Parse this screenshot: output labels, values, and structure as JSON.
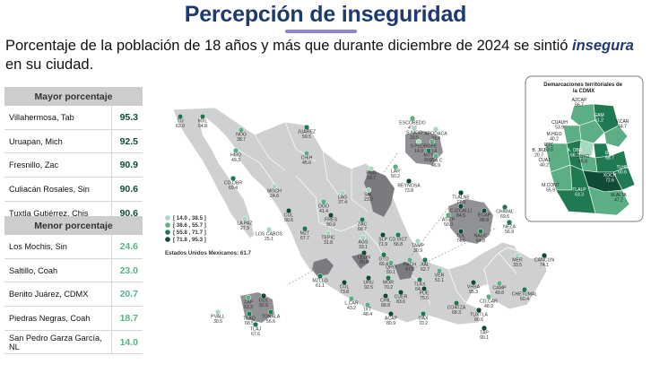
{
  "header": {
    "title": "Percepción de inseguridad",
    "subtitle_pre": "Porcentaje de la población de 18 años y más que durante diciembre de 2024 se sintió",
    "subtitle_em": "insegura",
    "subtitle_post": "en su ciudad."
  },
  "top_table": {
    "heading": "Mayor porcentaje",
    "rows": [
      {
        "city": "Villahermosa, Tab",
        "value": "95.3"
      },
      {
        "city": "Uruapan, Mich",
        "value": "92.5"
      },
      {
        "city": "Fresnillo, Zac",
        "value": "90.9"
      },
      {
        "city": "Culiacán Rosales, Sin",
        "value": "90.6"
      },
      {
        "city": "Tuxtla Gutiérrez, Chis",
        "value": "90.6"
      }
    ]
  },
  "bottom_table": {
    "heading": "Menor porcentaje",
    "rows": [
      {
        "city": "Los Mochis, Sin",
        "value": "24.6"
      },
      {
        "city": "Saltillo, Coah",
        "value": "23.0"
      },
      {
        "city": "Benito Juárez, CDMX",
        "value": "20.7"
      },
      {
        "city": "Piedras Negras, Coah",
        "value": "18.7"
      },
      {
        "city": "San Pedro Garza García, NL",
        "value": "14.0"
      }
    ]
  },
  "legend": {
    "ranges": [
      "[ 14.0 , 38.5 ]",
      "[ 38.6 , 55.7 ]",
      "[ 55.8 , 71.7 ]",
      "[ 71.8 , 95.3 ]"
    ],
    "colors": [
      "#a8d8bd",
      "#5cae84",
      "#1f7a52",
      "#0f4b35"
    ],
    "national": "Estados Unidos Mexicanos: 61.7"
  },
  "cdmx": {
    "title": "Demarcaciones territoriales de la CDMX",
    "labels": [
      {
        "name": "AZCAP",
        "value": "56.7"
      },
      {
        "name": "GAM",
        "value": "61.2"
      },
      {
        "name": "CUAUH",
        "value": "53.9"
      },
      {
        "name": "V.CAR",
        "value": "44.7"
      },
      {
        "name": "M.HGO",
        "value": "40.2"
      },
      {
        "name": "IZTC",
        "value": "63.5"
      },
      {
        "name": "B. JRZ",
        "value": "20.7"
      },
      {
        "name": "CUAJ",
        "value": "40.2"
      },
      {
        "name": "A. OBR",
        "value": "66.2"
      },
      {
        "name": "COYO",
        "value": "45.9"
      },
      {
        "name": "IZTP",
        "value": "68.7"
      },
      {
        "name": "TLHC",
        "value": "60.6"
      },
      {
        "name": "M.CONT",
        "value": "55.9"
      },
      {
        "name": "XOCH",
        "value": "72.6"
      },
      {
        "name": "TLALP",
        "value": "63.3"
      },
      {
        "name": "M.ALTA",
        "value": "47.2"
      }
    ]
  },
  "cities": [
    {
      "name": "TIJ",
      "value": "62.0",
      "level": 2
    },
    {
      "name": "MXL",
      "value": "64.8",
      "level": 2
    },
    {
      "name": "NOG",
      "value": "38.7",
      "level": 1
    },
    {
      "name": "JUÁREZ",
      "value": "59.5",
      "level": 2
    },
    {
      "name": "HMO",
      "value": "49.3",
      "level": 1
    },
    {
      "name": "CHIH",
      "value": "45.6",
      "level": 1
    },
    {
      "name": "CD.OBR",
      "value": "69.4",
      "level": 2
    },
    {
      "name": "MOCH",
      "value": "24.6",
      "level": 0
    },
    {
      "name": "LA PAZ",
      "value": "27.9",
      "level": 0
    },
    {
      "name": "LOS CABOS",
      "value": "25.1",
      "level": 0
    },
    {
      "name": "CUL",
      "value": "90.6",
      "level": 3
    },
    {
      "name": "MZT",
      "value": "67.7",
      "level": 2
    },
    {
      "name": "DGO",
      "value": "41.4",
      "level": 1
    },
    {
      "name": "LAG",
      "value": "37.4",
      "level": 0
    },
    {
      "name": "SAL",
      "value": "23.0",
      "level": 0
    },
    {
      "name": "PNG",
      "value": "18.7",
      "level": 0
    },
    {
      "name": "LAR",
      "value": "50.2",
      "level": 1
    },
    {
      "name": "ESCOBEDO",
      "value": "47.9",
      "level": 1
    },
    {
      "name": "S.NICO",
      "value": "28.5",
      "level": 0
    },
    {
      "name": "APODACA",
      "value": "33.4",
      "level": 0
    },
    {
      "name": "GPE",
      "value": "50.4",
      "level": 1
    },
    {
      "name": "S.PEDR",
      "value": "14.0",
      "level": 0
    },
    {
      "name": "MTY",
      "value": "60.2",
      "level": 2
    },
    {
      "name": "STA.C",
      "value": "46.9",
      "level": 1
    },
    {
      "name": "REYNOSA",
      "value": "73.8",
      "level": 3
    },
    {
      "name": "FRES",
      "value": "90.9",
      "level": 3
    },
    {
      "name": "ZAC",
      "value": "68.7",
      "level": 2
    },
    {
      "name": "CD.VICT",
      "value": "56.8",
      "level": 2
    },
    {
      "name": "TEPIC",
      "value": "31.8",
      "level": 0
    },
    {
      "name": "AGS",
      "value": "33.1",
      "level": 0
    },
    {
      "name": "SLP",
      "value": "71.9",
      "level": 3
    },
    {
      "name": "TAMP",
      "value": "30.9",
      "level": 0
    },
    {
      "name": "LEON",
      "value": "80.8",
      "level": 3
    },
    {
      "name": "GTO",
      "value": "66.4",
      "level": 2
    },
    {
      "name": "QRO",
      "value": "50.1",
      "level": 1
    },
    {
      "name": "PACH",
      "value": "47.5",
      "level": 1
    },
    {
      "name": "XAL",
      "value": "62.7",
      "level": 2
    },
    {
      "name": "TLAX",
      "value": "64.2",
      "level": 2
    },
    {
      "name": "VER",
      "value": "51.1",
      "level": 1
    },
    {
      "name": "MZLLO",
      "value": "61.1",
      "level": 2
    },
    {
      "name": "COL",
      "value": "73.8",
      "level": 3
    },
    {
      "name": "URU",
      "value": "92.5",
      "level": 3
    },
    {
      "name": "MOR",
      "value": "70.2",
      "level": 2
    },
    {
      "name": "CHIL",
      "value": "88.8",
      "level": 3
    },
    {
      "name": "CUER",
      "value": "83.6",
      "level": 3
    },
    {
      "name": "PUE",
      "value": "75.5",
      "level": 3
    },
    {
      "name": "VHSA",
      "value": "95.3",
      "level": 3
    },
    {
      "name": "CD.CAR",
      "value": "48.9",
      "level": 1
    },
    {
      "name": "CAMP",
      "value": "49.8",
      "level": 1
    },
    {
      "name": "MER",
      "value": "33.5",
      "level": 0
    },
    {
      "name": "CANCUN",
      "value": "74.1",
      "level": 3
    },
    {
      "name": "CHETUMAL",
      "value": "60.4",
      "level": 2
    },
    {
      "name": "L.CAR",
      "value": "43.2",
      "level": 1
    },
    {
      "name": "IXT",
      "value": "48.4",
      "level": 1
    },
    {
      "name": "ACAP",
      "value": "80.9",
      "level": 3
    },
    {
      "name": "OAX",
      "value": "70.2",
      "level": 2
    },
    {
      "name": "COATZA",
      "value": "68.3",
      "level": 2
    },
    {
      "name": "TUXTLA",
      "value": "90.6",
      "level": 3
    },
    {
      "name": "TAP",
      "value": "90.1",
      "level": 3
    },
    {
      "name": "ZAP",
      "value": "53.3",
      "level": 1
    },
    {
      "name": "GDL",
      "value": "82.9",
      "level": 3
    },
    {
      "name": "TLAQ",
      "value": "68.5",
      "level": 2
    },
    {
      "name": "TONALA",
      "value": "56.6",
      "level": 2
    },
    {
      "name": "TLAJ",
      "value": "67.6",
      "level": 2
    },
    {
      "name": "PVALL",
      "value": "30.5",
      "level": 0
    },
    {
      "name": "TLALNE",
      "value": "77.9",
      "level": 3
    },
    {
      "name": "C.IZCALLI",
      "value": "84.5",
      "level": 3
    },
    {
      "name": "ECAP",
      "value": "88.8",
      "level": 3
    },
    {
      "name": "ATIZP",
      "value": "50.0",
      "level": 1
    },
    {
      "name": "CHIMAL",
      "value": "69.6",
      "level": 2
    },
    {
      "name": "NEZA",
      "value": "56.9",
      "level": 2
    },
    {
      "name": "TOL",
      "value": "74.6",
      "level": 3
    },
    {
      "name": "NAUC",
      "value": "64.8",
      "level": 2
    }
  ]
}
